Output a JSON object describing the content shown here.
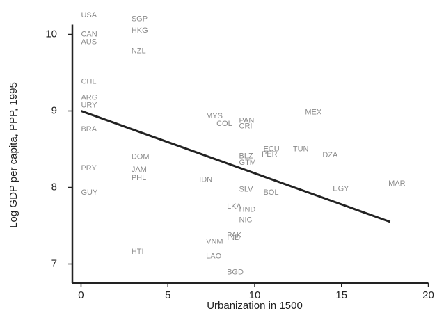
{
  "chart_data": {
    "type": "scatter",
    "title": "",
    "xlabel": "Urbanization in 1500",
    "ylabel": "Log GDP per capita, PPP, 1995",
    "xlim": [
      -0.5,
      20.5
    ],
    "ylim": [
      6.75,
      10.45
    ],
    "xticks": [
      0,
      5,
      10,
      15,
      20
    ],
    "yticks": [
      7,
      8,
      9,
      10
    ],
    "grid": false,
    "legend": "none",
    "marker": "country-code-text",
    "colors": {
      "points": "#8a8a8a",
      "axes": "#222222",
      "fit_line": "#222222"
    },
    "points": [
      {
        "label": "USA",
        "x": 0.0,
        "y": 10.25
      },
      {
        "label": "SGP",
        "x": 2.9,
        "y": 10.2
      },
      {
        "label": "HKG",
        "x": 2.9,
        "y": 10.05
      },
      {
        "label": "CAN",
        "x": 0.0,
        "y": 10.0
      },
      {
        "label": "AUS",
        "x": 0.0,
        "y": 9.9
      },
      {
        "label": "NZL",
        "x": 2.9,
        "y": 9.78
      },
      {
        "label": "CHL",
        "x": 0.0,
        "y": 9.38
      },
      {
        "label": "ARG",
        "x": 0.0,
        "y": 9.17
      },
      {
        "label": "URY",
        "x": 0.0,
        "y": 9.07
      },
      {
        "label": "MEX",
        "x": 12.9,
        "y": 8.98
      },
      {
        "label": "MYS",
        "x": 7.2,
        "y": 8.93
      },
      {
        "label": "COL",
        "x": 7.8,
        "y": 8.83
      },
      {
        "label": "PAN",
        "x": 9.1,
        "y": 8.87
      },
      {
        "label": "CRI",
        "x": 9.1,
        "y": 8.8
      },
      {
        "label": "BRA",
        "x": 0.0,
        "y": 8.76
      },
      {
        "label": "ECU",
        "x": 10.5,
        "y": 8.5
      },
      {
        "label": "TUN",
        "x": 12.2,
        "y": 8.5
      },
      {
        "label": "PER",
        "x": 10.4,
        "y": 8.43
      },
      {
        "label": "BLZ",
        "x": 9.1,
        "y": 8.41
      },
      {
        "label": "DZA",
        "x": 13.9,
        "y": 8.42
      },
      {
        "label": "GTM",
        "x": 9.1,
        "y": 8.32
      },
      {
        "label": "DOM",
        "x": 2.9,
        "y": 8.4
      },
      {
        "label": "PRY",
        "x": 0.0,
        "y": 8.25
      },
      {
        "label": "JAM",
        "x": 2.9,
        "y": 8.23
      },
      {
        "label": "PHL",
        "x": 2.9,
        "y": 8.12
      },
      {
        "label": "IDN",
        "x": 6.8,
        "y": 8.1
      },
      {
        "label": "MAR",
        "x": 17.7,
        "y": 8.05
      },
      {
        "label": "SLV",
        "x": 9.1,
        "y": 7.97
      },
      {
        "label": "EGY",
        "x": 14.5,
        "y": 7.98
      },
      {
        "label": "BOL",
        "x": 10.5,
        "y": 7.93
      },
      {
        "label": "GUY",
        "x": 0.0,
        "y": 7.93
      },
      {
        "label": "LKA",
        "x": 8.4,
        "y": 7.75
      },
      {
        "label": "HND",
        "x": 9.1,
        "y": 7.71
      },
      {
        "label": "NIC",
        "x": 9.1,
        "y": 7.57
      },
      {
        "label": "PAK",
        "x": 8.4,
        "y": 7.37
      },
      {
        "label": "IND",
        "x": 8.4,
        "y": 7.34
      },
      {
        "label": "VNM",
        "x": 7.2,
        "y": 7.29
      },
      {
        "label": "HTI",
        "x": 2.9,
        "y": 7.16
      },
      {
        "label": "LAO",
        "x": 7.2,
        "y": 7.1
      },
      {
        "label": "BGD",
        "x": 8.4,
        "y": 6.89
      }
    ],
    "fit_line": {
      "x": [
        0.0,
        17.8
      ],
      "y": [
        9.0,
        7.55
      ]
    }
  }
}
